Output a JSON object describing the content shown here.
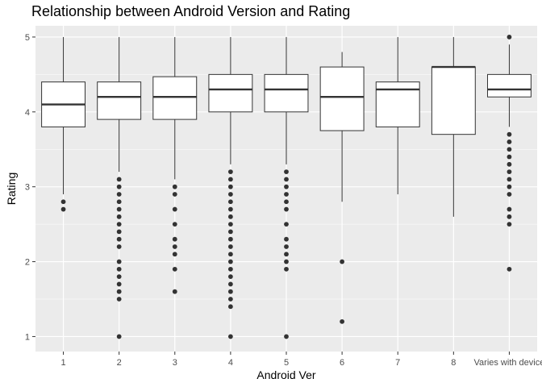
{
  "chart_data": {
    "type": "boxplot",
    "title": "Relationship between Android Version and Rating",
    "xlabel": "Android Ver",
    "ylabel": "Rating",
    "ylim": [
      0.8,
      5.15
    ],
    "yticks": [
      1,
      2,
      3,
      4,
      5
    ],
    "grid": true,
    "legend": "none",
    "colors": {
      "panel": "#ebebeb",
      "grid": "#ffffff",
      "box_fill": "#ffffff",
      "line": "#333333",
      "text": "#4d4d4d"
    },
    "categories": [
      "1",
      "2",
      "3",
      "4",
      "5",
      "6",
      "7",
      "8",
      "Varies with device"
    ],
    "boxes": [
      {
        "min": 2.9,
        "q1": 3.8,
        "median": 4.1,
        "q3": 4.4,
        "max": 5.0,
        "outliers": [
          2.8,
          2.7
        ]
      },
      {
        "min": 3.2,
        "q1": 3.9,
        "median": 4.2,
        "q3": 4.4,
        "max": 5.0,
        "outliers": [
          3.1,
          3.0,
          2.9,
          2.8,
          2.7,
          2.6,
          2.5,
          2.4,
          2.3,
          2.2,
          2.0,
          1.9,
          1.8,
          1.7,
          1.6,
          1.5,
          1.0
        ]
      },
      {
        "min": 3.1,
        "q1": 3.9,
        "median": 4.2,
        "q3": 4.47,
        "max": 5.0,
        "outliers": [
          3.0,
          2.9,
          2.7,
          2.5,
          2.3,
          2.2,
          2.1,
          1.9,
          1.6
        ]
      },
      {
        "min": 3.3,
        "q1": 4.0,
        "median": 4.3,
        "q3": 4.5,
        "max": 5.0,
        "outliers": [
          3.2,
          3.1,
          3.0,
          2.9,
          2.8,
          2.7,
          2.6,
          2.5,
          2.4,
          2.3,
          2.2,
          2.1,
          2.0,
          1.9,
          1.8,
          1.7,
          1.6,
          1.5,
          1.4,
          1.0
        ]
      },
      {
        "min": 3.3,
        "q1": 4.0,
        "median": 4.3,
        "q3": 4.5,
        "max": 5.0,
        "outliers": [
          3.2,
          3.1,
          3.0,
          2.9,
          2.8,
          2.7,
          2.5,
          2.3,
          2.2,
          2.1,
          2.0,
          1.9,
          1.0
        ]
      },
      {
        "min": 2.8,
        "q1": 3.75,
        "median": 4.2,
        "q3": 4.6,
        "max": 4.8,
        "outliers": [
          2.0,
          1.2
        ]
      },
      {
        "min": 2.9,
        "q1": 3.8,
        "median": 4.3,
        "q3": 4.4,
        "max": 5.0,
        "outliers": []
      },
      {
        "min": 2.6,
        "q1": 3.7,
        "median": 4.6,
        "q3": 4.6,
        "max": 5.0,
        "outliers": []
      },
      {
        "min": 3.8,
        "q1": 4.2,
        "median": 4.3,
        "q3": 4.5,
        "max": 4.9,
        "outliers": [
          5.0,
          3.7,
          3.6,
          3.5,
          3.4,
          3.3,
          3.2,
          3.1,
          3.0,
          2.9,
          2.7,
          2.6,
          2.5,
          1.9
        ]
      }
    ]
  }
}
